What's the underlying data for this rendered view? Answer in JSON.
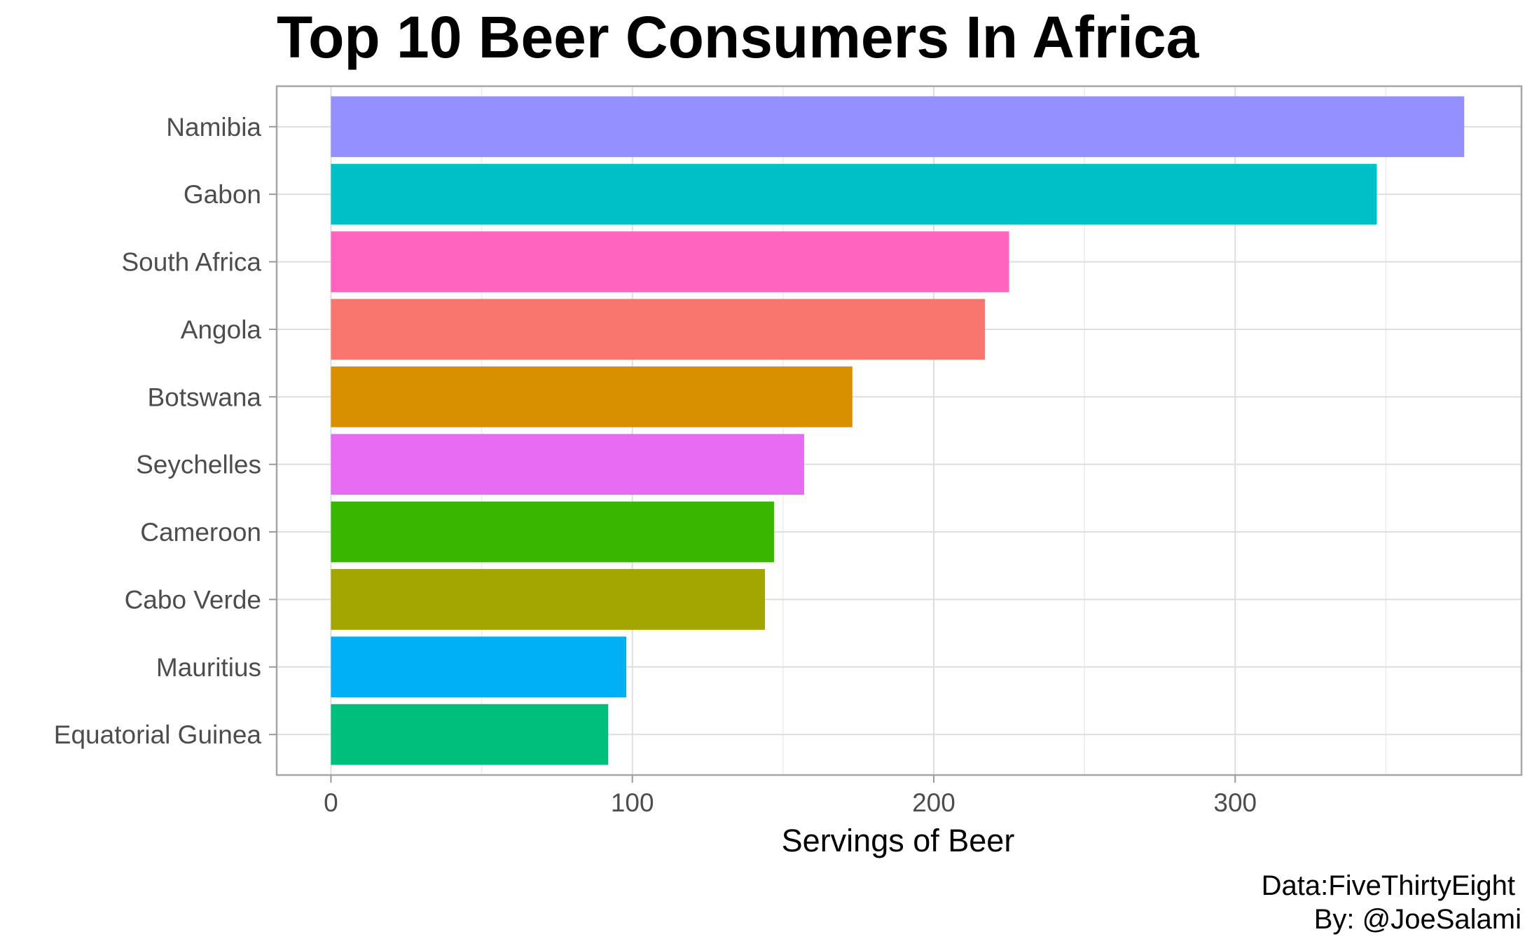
{
  "chart_data": {
    "type": "bar",
    "orientation": "horizontal",
    "title": "Top 10 Beer Consumers In Africa",
    "xlabel": "Servings of Beer",
    "ylabel": "",
    "xlim": [
      -18,
      395
    ],
    "xticks": [
      0,
      100,
      200,
      300
    ],
    "grid": true,
    "legend": "none",
    "categories": [
      "Namibia",
      "Gabon",
      "South Africa",
      "Angola",
      "Botswana",
      "Seychelles",
      "Cameroon",
      "Cabo Verde",
      "Mauritius",
      "Equatorial Guinea"
    ],
    "values": [
      376,
      347,
      225,
      217,
      173,
      157,
      147,
      144,
      98,
      92
    ],
    "colors": [
      "#9590FF",
      "#00C0C7",
      "#FF65BF",
      "#F8766D",
      "#D89000",
      "#E76BF3",
      "#39B600",
      "#A3A500",
      "#00B0F6",
      "#00BF7D"
    ]
  },
  "caption": {
    "line1": "Data:FiveThirtyEight",
    "line2": "By: @JoeSalami"
  }
}
